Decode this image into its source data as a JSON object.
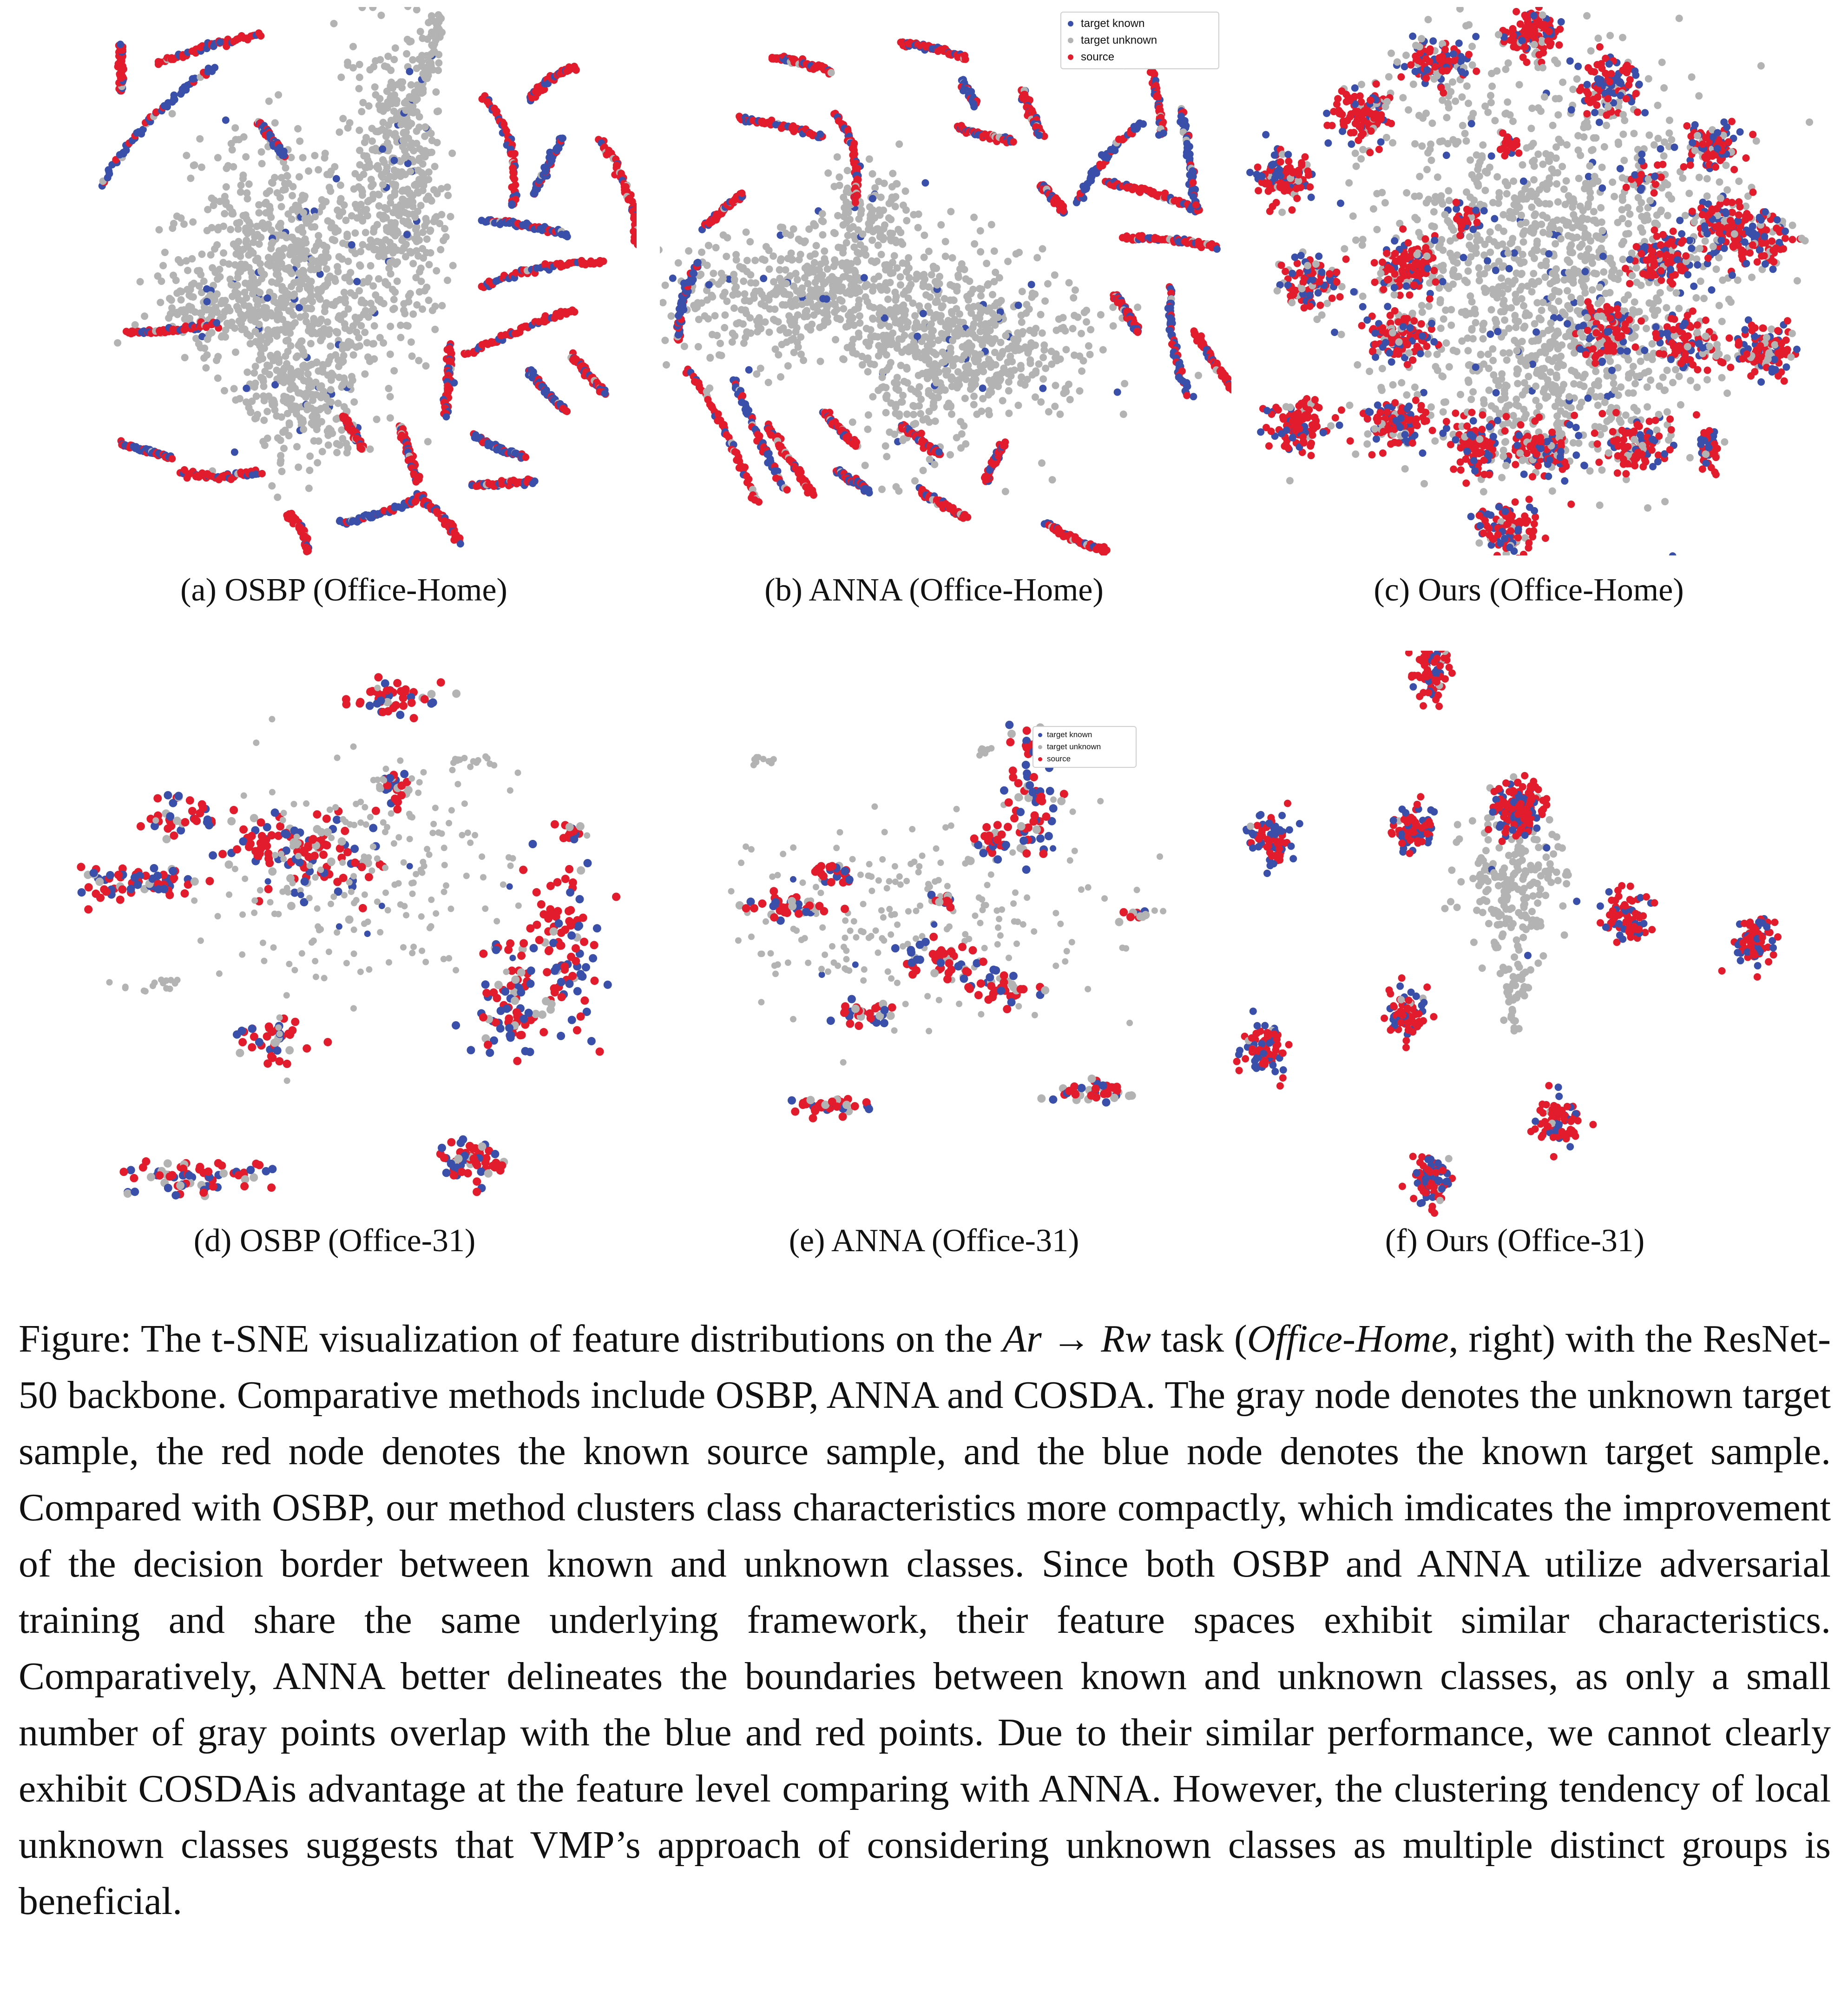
{
  "colors": {
    "target_known": "#3a4faa",
    "target_unknown": "#b3b3b3",
    "source": "#e31c2d"
  },
  "legend_labels": [
    "target known",
    "target unknown",
    "source"
  ],
  "subfigures": [
    {
      "label": "(a) OSBP (Office-Home)"
    },
    {
      "label": "(b) ANNA (Office-Home)"
    },
    {
      "label": "(c) Ours (Office-Home)"
    },
    {
      "label": "(d) OSBP (Office-31)"
    },
    {
      "label": "(e) ANNA (Office-31)"
    },
    {
      "label": "(f) Ours (Office-31)"
    }
  ],
  "caption": {
    "p1": "Figure: The t-SNE visualization of feature distributions on the ",
    "task": "Ar → Rw",
    "p2": " task (",
    "dataset": "Office-Home",
    "p3": ", right) with the ResNet-50 backbone.  Comparative methods include OSBP, ANNA and COSDA. The gray node denotes the unknown target sample, the red node denotes the known source sample, and the blue node denotes the known target sample. Compared with OSBP, our method clusters class characteristics more compactly, which imdicates the improvement of the decision border between known and unknown classes. Since both OSBP and ANNA utilize adversarial training and share the same underlying framework, their feature spaces exhibit similar characteristics. Comparatively, ANNA better delineates the boundaries between known and unknown classes, as only a small number of gray points overlap with the blue and red points. Due to their similar performance, we cannot clearly exhibit COSDAis advantage at the feature level comparing with ANNA. However, the clustering tendency of local unknown classes suggests that VMP’s approach of considering unknown classes as multiple distinct groups is beneficial."
  }
}
